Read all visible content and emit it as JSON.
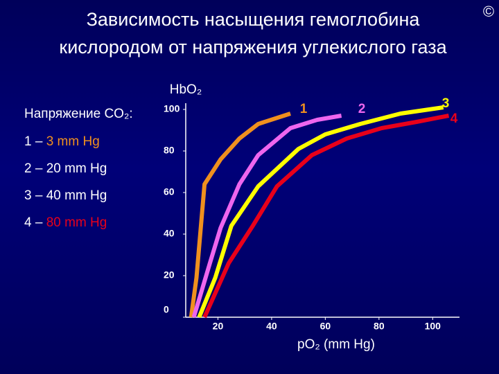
{
  "title": "Зависимость насыщения гемоглобина кислородом от напряжения углекислого газа",
  "copyright": "©",
  "legend": {
    "title": "Напряжение CO₂:",
    "items": [
      {
        "prefix": "1 –",
        "text": "3 mm Hg",
        "color": "#f0901e"
      },
      {
        "prefix": "2 –",
        "text": "20 mm Hg",
        "color": "#ffffff"
      },
      {
        "prefix": "3 –",
        "text": "40 mm Hg",
        "color": "#ffffff"
      },
      {
        "prefix": "4 –",
        "text": "80 mm Hg",
        "color": "#e8001a"
      }
    ]
  },
  "chart_data": {
    "type": "line",
    "y_label": "HbO₂",
    "x_label": "pO₂ (mm Hg)",
    "xlim": [
      8,
      110
    ],
    "ylim": [
      0,
      103
    ],
    "xticks": [
      20,
      40,
      60,
      80,
      100
    ],
    "yticks": [
      0,
      20,
      40,
      60,
      80,
      100
    ],
    "series": [
      {
        "name": "1",
        "color": "#f0901e",
        "x": [
          10,
          12,
          15,
          21,
          28,
          35,
          47
        ],
        "values": [
          0,
          19,
          64,
          76,
          86,
          93,
          98
        ]
      },
      {
        "name": "2",
        "color": "#ee66ee",
        "x": [
          11,
          17,
          21,
          28,
          35,
          47,
          57,
          66
        ],
        "values": [
          0,
          26,
          43,
          64,
          78,
          91,
          95,
          97
        ]
      },
      {
        "name": "3",
        "color": "#ffff00",
        "x": [
          13,
          19,
          25,
          35,
          50,
          60,
          73,
          88,
          104
        ],
        "values": [
          0,
          19,
          44,
          63,
          81,
          88,
          93,
          98,
          101
        ]
      },
      {
        "name": "4",
        "color": "#e8001a",
        "x": [
          15,
          24,
          33,
          42,
          55,
          68,
          81,
          94,
          106
        ],
        "values": [
          0,
          26,
          44,
          63,
          78,
          86,
          91,
          94,
          97
        ]
      }
    ]
  }
}
